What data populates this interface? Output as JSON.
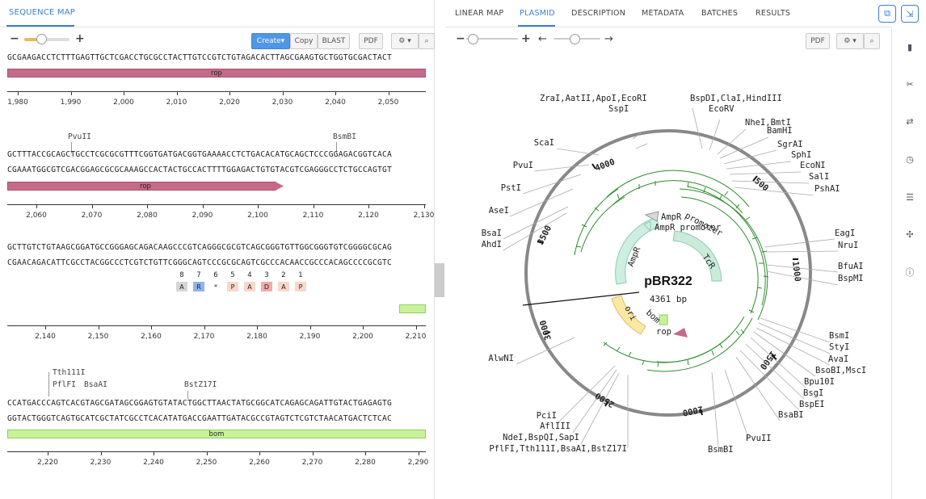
{
  "left_panel": {
    "tab": "SEQUENCE MAP",
    "toolbar": {
      "create": "Create▾",
      "copy": "Copy",
      "blast": "BLAST",
      "pdf": "PDF"
    },
    "sections": [
      {
        "lines": [
          "GCGAAGACCTCTTTGAGTTGCTCGACCTGCGCCTACTTGTCCGTCTGTAGACACTTAGCGAAGTGCTGGTGCGACTACT"
        ],
        "feature": "rop",
        "ticks": [
          "1,980",
          "1,990",
          "2,000",
          "2,010",
          "2,020",
          "2,030",
          "2,040",
          "2,050"
        ]
      },
      {
        "sites": [
          "PvuII",
          "BsmBI"
        ],
        "lines": [
          "GCTTTACCGCAGCTGCCTCGCGCGTTTCGGTGATGACGGTGAAAACCTCTGACACATGCAGCTCCCGGAGACGGTCACA",
          "CGAAATGGCGTCGACGGAGCGCGCAAAGCCACTACTGCCACTTTTGGAGACTGTGTACGTCGAGGGCCTCTGCCAGTGT"
        ],
        "feature": "rop",
        "ticks": [
          "2,060",
          "2,070",
          "2,080",
          "2,090",
          "2,100",
          "2,110",
          "2,120",
          "2,130"
        ]
      },
      {
        "lines": [
          "GCTTGTCTGTAAGCGGATGCCGGGAGCAGACAAGCCCGTCAGGGCGCGTCAGCGGGTGTTGGCGGGTGTCGGGGCGCAG",
          "CGAACAGACATTCGCCTACGGCCCTCGTCTGTTCGGGCAGTCCCGCGCAGTCGCCCACAACCGCCCACAGCCCCGCGTC"
        ],
        "translation": {
          "numbers": [
            "8",
            "7",
            "6",
            "5",
            "4",
            "3",
            "2",
            "1"
          ],
          "residues": [
            "A",
            "R",
            "*",
            "P",
            "A",
            "D",
            "A",
            "P"
          ]
        },
        "ticks": [
          "2,140",
          "2,150",
          "2,160",
          "2,170",
          "2,180",
          "2,190",
          "2,200",
          "2,210"
        ]
      },
      {
        "sites": [
          "Tth111I",
          "PflFI",
          "BsaAI",
          "BstZ17I"
        ],
        "lines": [
          "CCATGACCCAGTCACGTAGCGATAGCGGAGTGTATACTGGCTTAACTATGCGGCATCAGAGCAGATTGTACTGAGAGTG",
          "GGTACTGGGTCAGTGCATCGCTATCGCCTCACATATGACCGAATTGATACGCCGTAGTCTCGTCTAACATGACTCTCAC"
        ],
        "feature": "bom",
        "ticks": [
          "2,220",
          "2,230",
          "2,240",
          "2,250",
          "2,260",
          "2,270",
          "2,280",
          "2,290"
        ]
      }
    ]
  },
  "right_panel": {
    "tabs": [
      "LINEAR MAP",
      "PLASMID",
      "DESCRIPTION",
      "METADATA",
      "BATCHES",
      "RESULTS"
    ],
    "active_tab": "PLASMID",
    "toolbar": {
      "pdf": "PDF"
    },
    "plasmid": {
      "name": "pBR322",
      "length": "4361 bp",
      "ring_ticks": [
        "500",
        "1000",
        "1500",
        "2000",
        "2500",
        "3000",
        "3500",
        "4000"
      ],
      "features": [
        "AmpR",
        "AmpR promoter",
        "promoter",
        "TcR",
        "ori",
        "bom",
        "rop"
      ],
      "enzyme_labels": [
        "ZraI,AatII,ApoI,EcoRI",
        "SspI",
        "BspDI,ClaI,HindIII",
        "EcoRV",
        "NheI,BmtI",
        "BamHI",
        "SgrAI",
        "SphI",
        "EcoNI",
        "SalI",
        "PshAI",
        "EagI",
        "NruI",
        "BfuAI",
        "BspMI",
        "BsmI",
        "StyI",
        "AvaI",
        "BsoBI,MscI",
        "Bpu10I",
        "BsgI",
        "BspEI",
        "BsaBI",
        "PvuII",
        "BsmBI",
        "PciI",
        "AflIII",
        "NdeI,BspQI,SapI",
        "PflFI,Tth111I,BsaAI,BstZ17I",
        "AlwNI",
        "ScaI",
        "PvuI",
        "PstI",
        "AseI",
        "BsaI",
        "AhdI"
      ]
    }
  },
  "colors": {
    "accent": "#3a7fd5",
    "rop": "#c56b87",
    "bom": "#c8f29a",
    "tcr": "#c9ebd9",
    "ori": "#fbe8a5",
    "ampr": "#cdeee0",
    "primer": "#2e8b2e"
  }
}
